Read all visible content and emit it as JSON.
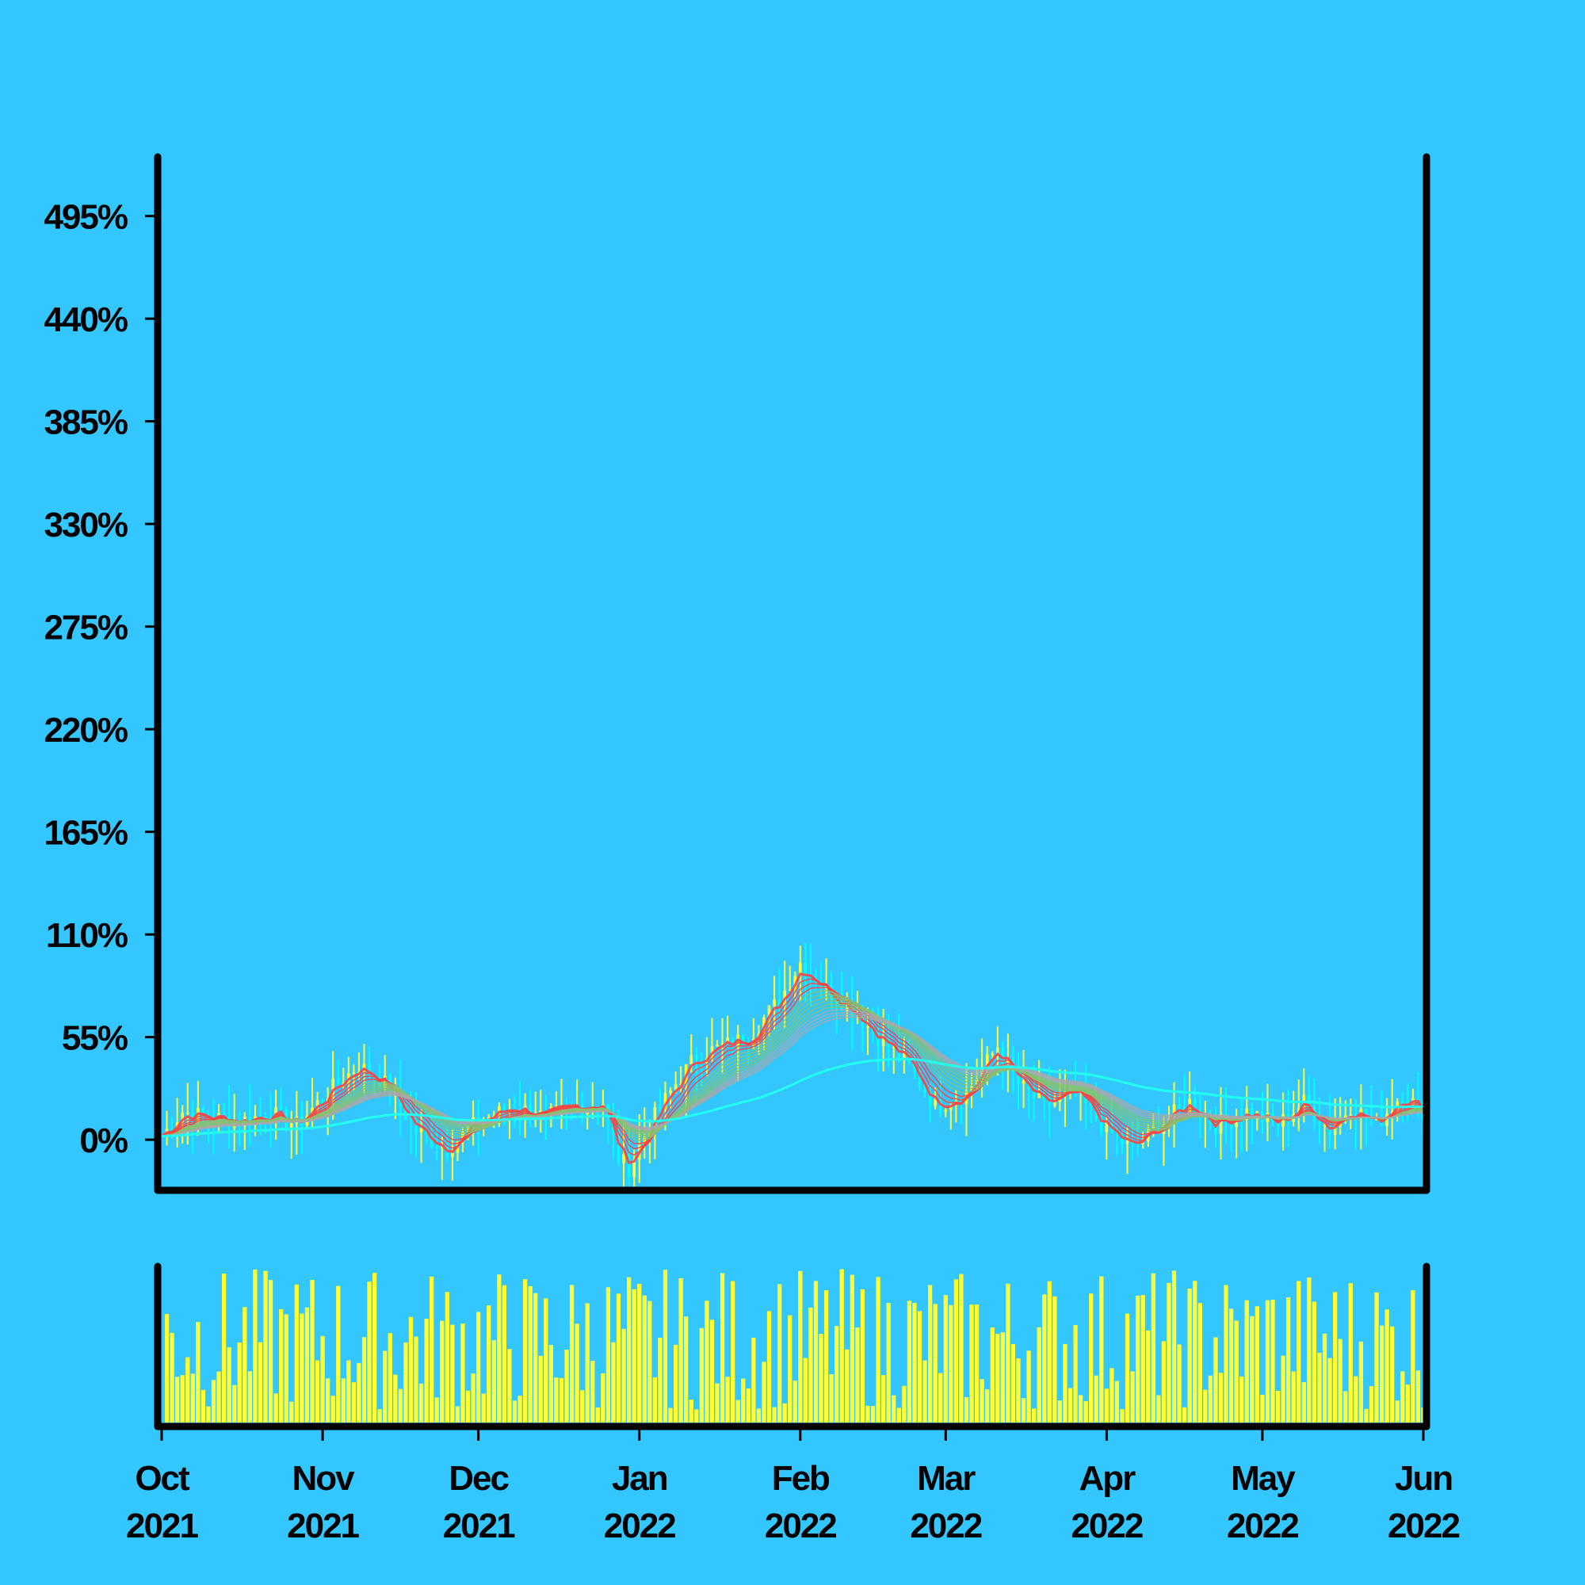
{
  "colors": {
    "background": "#33c6ff",
    "axis": "#000000",
    "candle_up": "#ffff33",
    "candle_down": "#00ffff",
    "ribbon_short": "#ff4040",
    "ribbon_mid": "#88c070",
    "ribbon_long": "#3080ff",
    "ribbon_edge": "#a8a8a8",
    "trend_line": "#22ffee",
    "volume": "#ffff33"
  },
  "chart_data": {
    "type": "line",
    "subtype": "candlestick with moving-average ribbon and volume panel",
    "y_tick_labels": [
      "0%",
      "55%",
      "110%",
      "165%",
      "220%",
      "275%",
      "330%",
      "385%",
      "440%",
      "495%"
    ],
    "y_ticks": [
      0,
      55,
      110,
      165,
      220,
      275,
      330,
      385,
      440,
      495
    ],
    "ylim": [
      -25,
      525
    ],
    "x_range": [
      "2021-10-01",
      "2022-06-01"
    ],
    "x_ticks": [
      {
        "date": "2021-10-01",
        "month": "Oct",
        "year": "2021"
      },
      {
        "date": "2021-11-01",
        "month": "Nov",
        "year": "2021"
      },
      {
        "date": "2021-12-01",
        "month": "Dec",
        "year": "2021"
      },
      {
        "date": "2022-01-01",
        "month": "Jan",
        "year": "2022"
      },
      {
        "date": "2022-02-01",
        "month": "Feb",
        "year": "2022"
      },
      {
        "date": "2022-03-01",
        "month": "Mar",
        "year": "2022"
      },
      {
        "date": "2022-04-01",
        "month": "Apr",
        "year": "2022"
      },
      {
        "date": "2022-05-01",
        "month": "May",
        "year": "2022"
      },
      {
        "date": "2022-06-01",
        "month": "Jun",
        "year": "2022"
      }
    ],
    "price_path": [
      [
        "2021-10-01",
        2
      ],
      [
        "2021-10-05",
        15
      ],
      [
        "2021-10-10",
        12
      ],
      [
        "2021-10-16",
        10
      ],
      [
        "2021-10-22",
        14
      ],
      [
        "2021-10-27",
        8
      ],
      [
        "2021-11-03",
        28
      ],
      [
        "2021-11-08",
        40
      ],
      [
        "2021-11-13",
        30
      ],
      [
        "2021-11-19",
        5
      ],
      [
        "2021-11-25",
        -5
      ],
      [
        "2021-12-01",
        10
      ],
      [
        "2021-12-08",
        18
      ],
      [
        "2021-12-14",
        12
      ],
      [
        "2021-12-20",
        18
      ],
      [
        "2021-12-25",
        20
      ],
      [
        "2021-12-28",
        -10
      ],
      [
        "2021-12-30",
        -15
      ],
      [
        "2022-01-03",
        8
      ],
      [
        "2022-01-08",
        30
      ],
      [
        "2022-01-12",
        45
      ],
      [
        "2022-01-17",
        50
      ],
      [
        "2022-01-22",
        55
      ],
      [
        "2022-01-28",
        75
      ],
      [
        "2022-02-01",
        95
      ],
      [
        "2022-02-06",
        80
      ],
      [
        "2022-02-11",
        70
      ],
      [
        "2022-02-16",
        55
      ],
      [
        "2022-02-22",
        40
      ],
      [
        "2022-02-27",
        18
      ],
      [
        "2022-03-05",
        25
      ],
      [
        "2022-03-11",
        50
      ],
      [
        "2022-03-15",
        30
      ],
      [
        "2022-03-20",
        18
      ],
      [
        "2022-03-26",
        25
      ],
      [
        "2022-04-01",
        5
      ],
      [
        "2022-04-06",
        -5
      ],
      [
        "2022-04-12",
        10
      ],
      [
        "2022-04-17",
        20
      ],
      [
        "2022-04-22",
        8
      ],
      [
        "2022-04-28",
        15
      ],
      [
        "2022-05-04",
        8
      ],
      [
        "2022-05-09",
        20
      ],
      [
        "2022-05-14",
        5
      ],
      [
        "2022-05-18",
        18
      ],
      [
        "2022-05-23",
        8
      ],
      [
        "2022-05-28",
        25
      ],
      [
        "2022-06-01",
        15
      ]
    ],
    "grid": false,
    "legend": "none"
  }
}
